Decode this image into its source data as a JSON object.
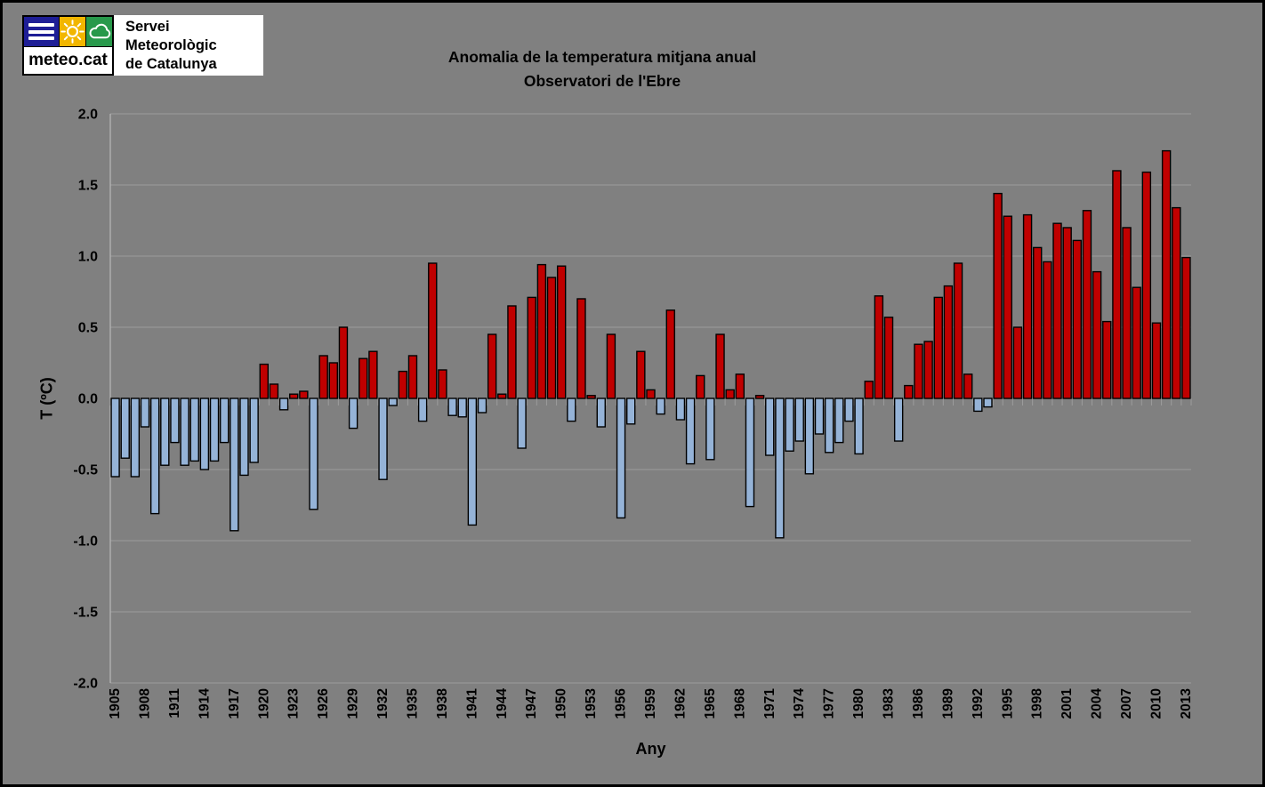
{
  "logo": {
    "brand": "meteo.cat",
    "org_line1": "Servei Meteorològic",
    "org_line2": "de Catalunya",
    "icon_names": [
      "menu-icon",
      "sun-icon",
      "cloud-icon"
    ],
    "colors": {
      "blue": "#1e1e96",
      "yellow": "#f2b600",
      "green": "#28994b"
    }
  },
  "chart_data": {
    "type": "bar",
    "title_line1": "Anomalia de la temperatura mitjana anual",
    "title_line2": "Observatori de l'Ebre",
    "xlabel": "Any",
    "ylabel": "T (ºC)",
    "ylim": [
      -2.0,
      2.0
    ],
    "ytick_step": 0.5,
    "ytick_labels": [
      "2.0",
      "1.5",
      "1.0",
      "0.5",
      "0.0",
      "-0.5",
      "-1.0",
      "-1.5",
      "-2.0"
    ],
    "xtick_labels": [
      "1905",
      "1908",
      "1911",
      "1914",
      "1917",
      "1920",
      "1923",
      "1926",
      "1929",
      "1932",
      "1935",
      "1938",
      "1941",
      "1944",
      "1947",
      "1950",
      "1953",
      "1956",
      "1959",
      "1962",
      "1965",
      "1968",
      "1971",
      "1974",
      "1977",
      "1980",
      "1983",
      "1986",
      "1989",
      "1992",
      "1995",
      "1998",
      "2001",
      "2004",
      "2007",
      "2010",
      "2013"
    ],
    "grid": true,
    "legend": false,
    "colors": {
      "positive": "#c00000",
      "negative": "#95b3d7",
      "bar_border": "#000000",
      "grid": "#9c9c9c",
      "axis": "#b8b8b8",
      "background": "#808080"
    },
    "year_start": 1905,
    "year_end": 2013,
    "years": [
      1905,
      1906,
      1907,
      1908,
      1909,
      1910,
      1911,
      1912,
      1913,
      1914,
      1915,
      1916,
      1917,
      1918,
      1919,
      1920,
      1921,
      1922,
      1923,
      1924,
      1925,
      1926,
      1927,
      1928,
      1929,
      1930,
      1931,
      1932,
      1933,
      1934,
      1935,
      1936,
      1937,
      1938,
      1939,
      1940,
      1941,
      1942,
      1943,
      1944,
      1945,
      1946,
      1947,
      1948,
      1949,
      1950,
      1951,
      1952,
      1953,
      1954,
      1955,
      1956,
      1957,
      1958,
      1959,
      1960,
      1961,
      1962,
      1963,
      1964,
      1965,
      1966,
      1967,
      1968,
      1969,
      1970,
      1971,
      1972,
      1973,
      1974,
      1975,
      1976,
      1977,
      1978,
      1979,
      1980,
      1981,
      1982,
      1983,
      1984,
      1985,
      1986,
      1987,
      1988,
      1989,
      1990,
      1991,
      1992,
      1993,
      1994,
      1995,
      1996,
      1997,
      1998,
      1999,
      2000,
      2001,
      2002,
      2003,
      2004,
      2005,
      2006,
      2007,
      2008,
      2009,
      2010,
      2011,
      2012,
      2013
    ],
    "values": [
      -0.55,
      -0.42,
      -0.55,
      -0.2,
      -0.81,
      -0.47,
      -0.31,
      -0.47,
      -0.44,
      -0.5,
      -0.44,
      -0.31,
      -0.93,
      -0.54,
      -0.45,
      0.24,
      0.1,
      -0.08,
      0.03,
      0.05,
      -0.78,
      0.3,
      0.25,
      0.5,
      -0.21,
      0.28,
      0.33,
      -0.57,
      -0.05,
      0.19,
      0.3,
      -0.16,
      0.95,
      0.2,
      -0.12,
      -0.13,
      -0.89,
      -0.1,
      0.45,
      0.03,
      0.65,
      -0.35,
      0.71,
      0.94,
      0.85,
      0.93,
      -0.16,
      0.7,
      0.02,
      -0.2,
      0.45,
      -0.84,
      -0.18,
      0.33,
      0.06,
      -0.11,
      0.62,
      -0.15,
      -0.46,
      0.16,
      -0.43,
      0.45,
      0.06,
      0.17,
      -0.76,
      0.02,
      -0.4,
      -0.98,
      -0.37,
      -0.3,
      -0.53,
      -0.25,
      -0.38,
      -0.31,
      -0.16,
      -0.39,
      0.12,
      0.72,
      0.57,
      -0.3,
      0.09,
      0.38,
      0.4,
      0.71,
      0.79,
      0.95,
      0.17,
      -0.09,
      -0.06,
      1.44,
      1.28,
      0.5,
      1.29,
      1.06,
      0.96,
      1.23,
      1.2,
      1.11,
      1.32,
      0.89,
      0.54,
      1.6,
      1.2,
      0.78,
      1.59,
      0.53,
      1.74,
      1.34,
      0.99
    ]
  }
}
